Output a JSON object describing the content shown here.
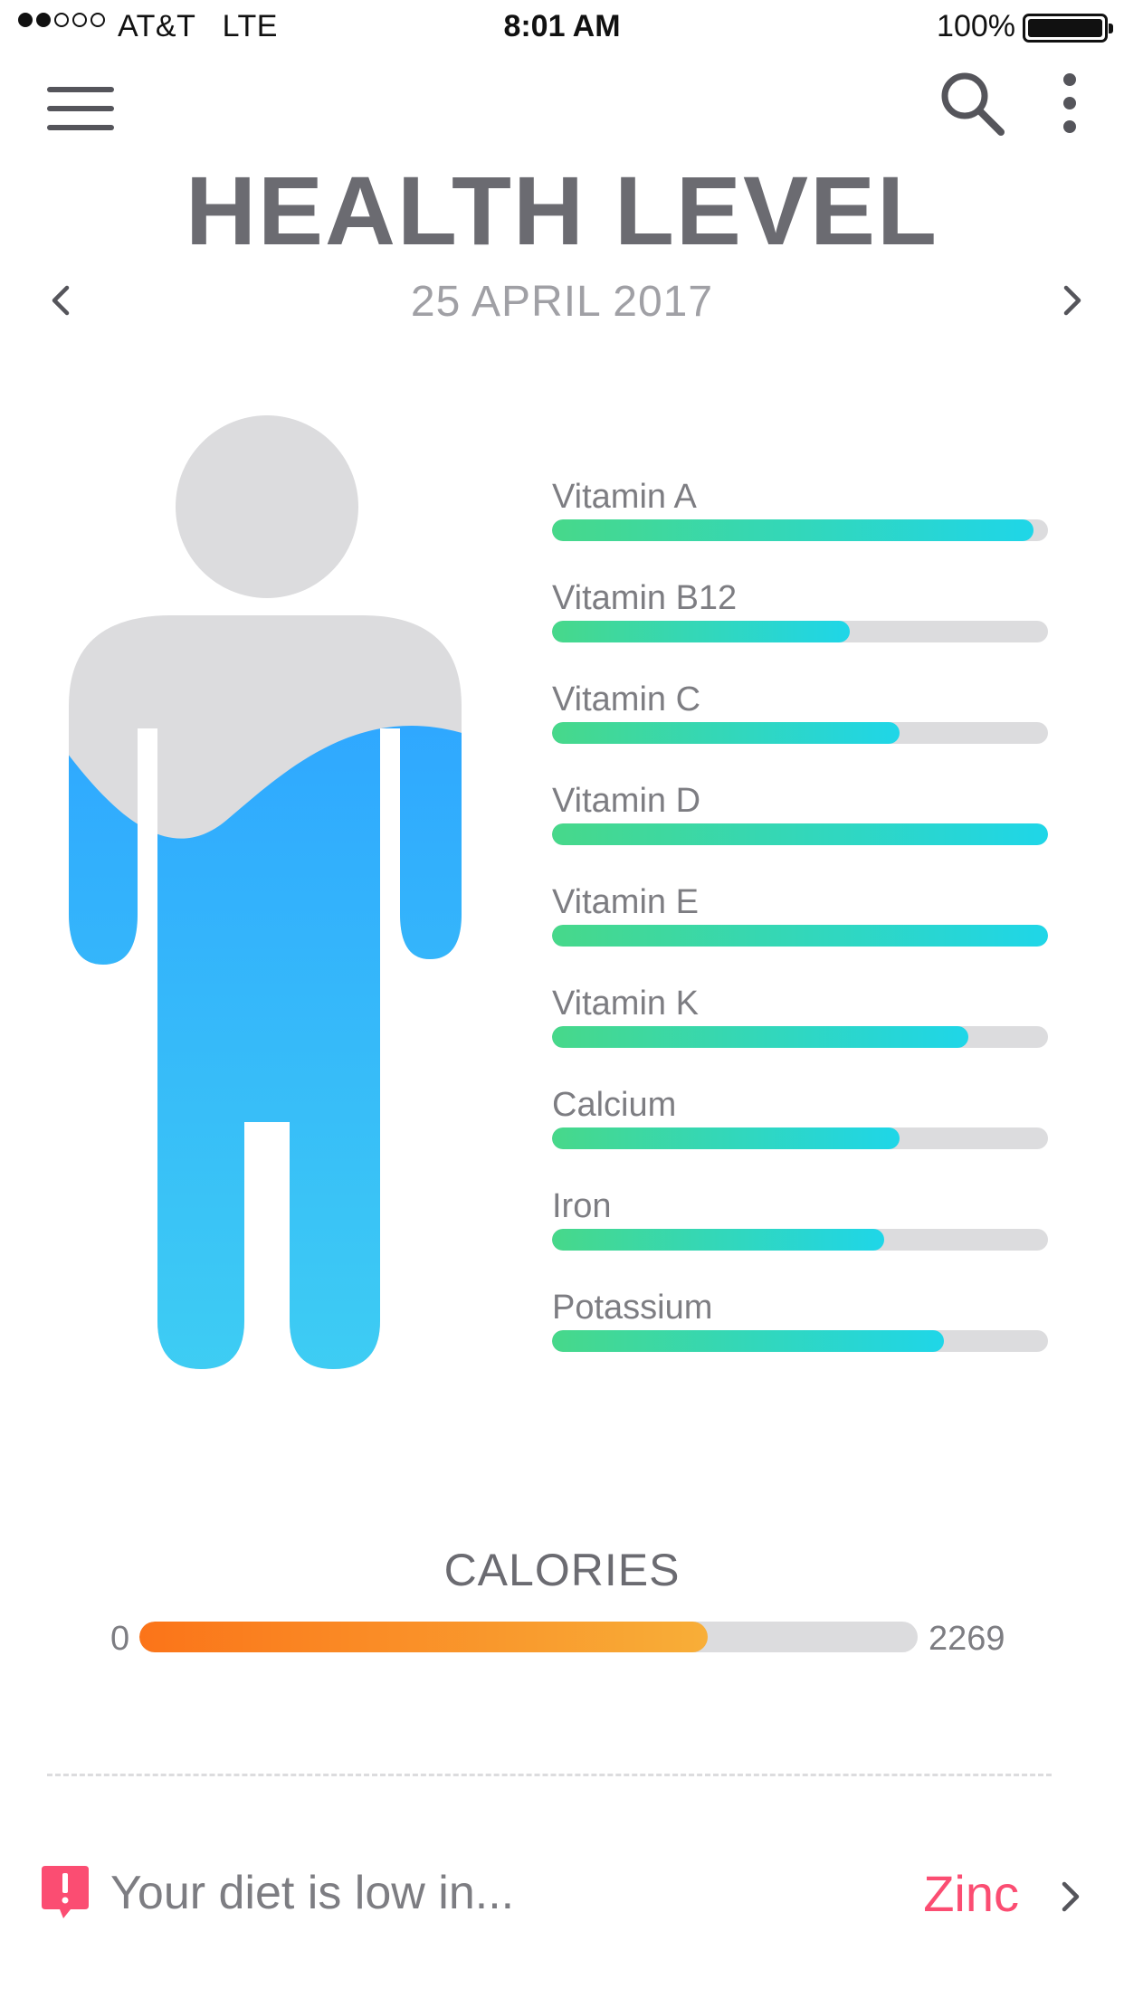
{
  "status_bar": {
    "carrier": "AT&T   LTE",
    "time": "8:01 AM",
    "battery": "100%",
    "signal_bars_filled": 2,
    "signal_bars_total": 5
  },
  "header": {
    "title": "HEALTH LEVEL",
    "date": "25 APRIL 2017"
  },
  "icons": {
    "menu": "hamburger-icon",
    "search": "search-icon",
    "more": "more-vertical-icon",
    "prev": "chevron-left-icon",
    "next": "chevron-right-icon",
    "alert": "alert-icon"
  },
  "body_fill_level": 0.8,
  "nutrients": [
    {
      "label": "Vitamin A",
      "level": 0.97
    },
    {
      "label": "Vitamin B12",
      "level": 0.6
    },
    {
      "label": "Vitamin C",
      "level": 0.7
    },
    {
      "label": "Vitamin D",
      "level": 1.0
    },
    {
      "label": "Vitamin E",
      "level": 1.0
    },
    {
      "label": "Vitamin K",
      "level": 0.84
    },
    {
      "label": "Calcium",
      "level": 0.7
    },
    {
      "label": "Iron",
      "level": 0.67
    },
    {
      "label": "Potassium",
      "level": 0.79
    }
  ],
  "calories": {
    "title": "CALORIES",
    "min_label": "0",
    "max_label": "2269",
    "level": 0.73
  },
  "alert": {
    "text": "Your diet is low in...",
    "value": "Zinc"
  },
  "colors": {
    "body_fill_top": "#2fa8ff",
    "body_fill_bottom": "#3fd0f2",
    "body_empty": "#dcdcde",
    "nutrient_gradient_start": "#47d88a",
    "nutrient_gradient_end": "#1fd6e8",
    "calorie_gradient_start": "#fb7419",
    "calorie_gradient_end": "#f8ae38",
    "alert_accent": "#fb4d72"
  }
}
